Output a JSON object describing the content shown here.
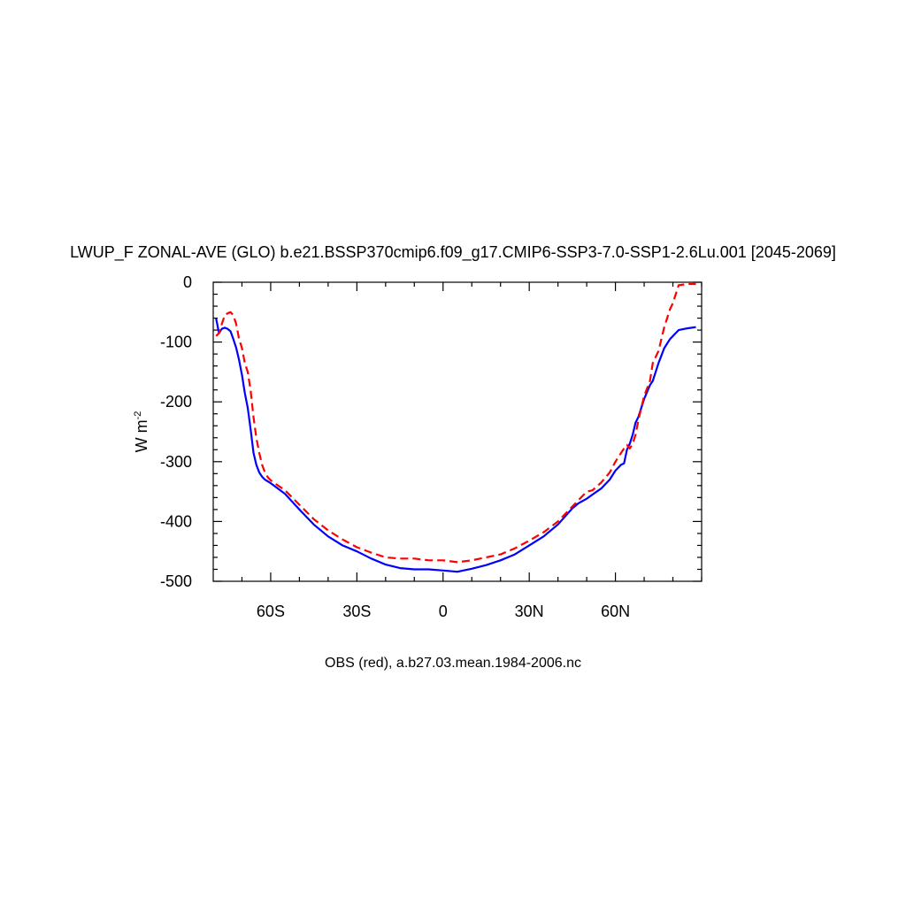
{
  "chart_data": {
    "type": "line",
    "title": "LWUP_F ZONAL-AVE (GLO) b.e21.BSSP370cmip6.f09_g17.CMIP6-SSP3-7.0-SSP1-2.6Lu.001 [2045-2069]",
    "ylabel": "W m",
    "ylabel_superscript": "-2",
    "footnote": "OBS (red), a.b27.03.mean.1984-2006.nc",
    "xlim": [
      -80,
      90
    ],
    "ylim": [
      -500,
      0
    ],
    "x_ticks": [
      {
        "value": -60,
        "label": "60S"
      },
      {
        "value": -30,
        "label": "30S"
      },
      {
        "value": 0,
        "label": "0"
      },
      {
        "value": 30,
        "label": "30N"
      },
      {
        "value": 60,
        "label": "60N"
      }
    ],
    "y_ticks": [
      {
        "value": 0,
        "label": "0"
      },
      {
        "value": -100,
        "label": "-100"
      },
      {
        "value": -200,
        "label": "-200"
      },
      {
        "value": -300,
        "label": "-300"
      },
      {
        "value": -400,
        "label": "-400"
      },
      {
        "value": -500,
        "label": "-500"
      }
    ],
    "series": [
      {
        "color": "#0000ff",
        "style": "solid",
        "x": [
          -79,
          -78,
          -77,
          -76,
          -75,
          -74,
          -73,
          -72,
          -71,
          -70,
          -69,
          -68,
          -67,
          -66,
          -65,
          -64,
          -63,
          -62,
          -61,
          -60,
          -58,
          -55,
          -50,
          -45,
          -40,
          -35,
          -30,
          -25,
          -20,
          -15,
          -10,
          -5,
          0,
          5,
          10,
          15,
          20,
          25,
          30,
          35,
          40,
          45,
          47,
          50,
          52,
          55,
          58,
          60,
          62,
          63,
          64,
          65,
          66,
          67,
          68,
          69,
          70,
          72,
          73,
          75,
          77,
          79,
          82,
          85,
          88
        ],
        "y": [
          -60,
          -85,
          -78,
          -76,
          -78,
          -82,
          -95,
          -110,
          -130,
          -155,
          -185,
          -210,
          -245,
          -285,
          -305,
          -318,
          -325,
          -330,
          -333,
          -336,
          -343,
          -354,
          -380,
          -405,
          -425,
          -440,
          -450,
          -462,
          -472,
          -478,
          -480,
          -480,
          -482,
          -484,
          -479,
          -473,
          -465,
          -455,
          -440,
          -425,
          -405,
          -378,
          -370,
          -362,
          -355,
          -345,
          -330,
          -315,
          -305,
          -303,
          -280,
          -270,
          -255,
          -235,
          -225,
          -210,
          -195,
          -172,
          -165,
          -135,
          -110,
          -95,
          -80,
          -77,
          -75
        ]
      },
      {
        "color": "#ff0000",
        "style": "dashed",
        "x": [
          -79,
          -78,
          -77,
          -76,
          -75,
          -74,
          -73,
          -72,
          -71,
          -70,
          -69,
          -68,
          -67,
          -66,
          -65,
          -64,
          -63,
          -62,
          -61,
          -60,
          -58,
          -55,
          -50,
          -45,
          -40,
          -35,
          -30,
          -25,
          -20,
          -15,
          -10,
          -5,
          0,
          5,
          10,
          15,
          20,
          25,
          30,
          35,
          40,
          45,
          50,
          52,
          55,
          58,
          60,
          62,
          63,
          64,
          65,
          66,
          67,
          68,
          69,
          70,
          72,
          73,
          75,
          77,
          79,
          80,
          82,
          85,
          88
        ],
        "y": [
          -90,
          -85,
          -70,
          -55,
          -52,
          -50,
          -55,
          -70,
          -95,
          -110,
          -135,
          -150,
          -180,
          -225,
          -260,
          -285,
          -305,
          -318,
          -326,
          -331,
          -338,
          -348,
          -372,
          -396,
          -415,
          -430,
          -443,
          -452,
          -460,
          -462,
          -462,
          -465,
          -465,
          -468,
          -465,
          -460,
          -455,
          -445,
          -432,
          -418,
          -400,
          -375,
          -350,
          -348,
          -335,
          -318,
          -300,
          -285,
          -278,
          -272,
          -278,
          -270,
          -255,
          -230,
          -210,
          -190,
          -165,
          -135,
          -115,
          -75,
          -45,
          -35,
          -5,
          -3,
          -3
        ]
      }
    ]
  }
}
